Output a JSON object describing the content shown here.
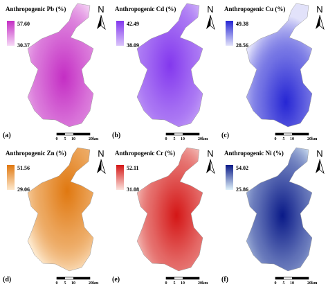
{
  "north": "N",
  "scale_bar": [
    "0",
    "5",
    "10",
    "20km"
  ],
  "panels": [
    {
      "label": "(a)",
      "title": "Anthropogenic Pb (%)",
      "legend_max": "57.60",
      "legend_min": "30.37",
      "color_max": "#c42ec4",
      "color_min": "#f6d8f6"
    },
    {
      "label": "(b)",
      "title": "Anthropogenic Cd (%)",
      "legend_max": "42.49",
      "legend_min": "38.09",
      "color_max": "#8338ee",
      "color_min": "#dac4fa"
    },
    {
      "label": "(c)",
      "title": "Anthropogenic Cu (%)",
      "legend_max": "49.38",
      "legend_min": "28.56",
      "color_max": "#2626d4",
      "color_min": "#e2e2fa"
    },
    {
      "label": "(d)",
      "title": "Anthropogenic Zn (%)",
      "legend_max": "51.56",
      "legend_min": "29.06",
      "color_max": "#e07810",
      "color_min": "#fde8cc"
    },
    {
      "label": "(e)",
      "title": "Anthropogenic Cr (%)",
      "legend_max": "52.11",
      "legend_min": "31.08",
      "color_max": "#d41616",
      "color_min": "#fbe2dc"
    },
    {
      "label": "(f)",
      "title": "Anthropogenic Ni (%)",
      "legend_max": "54.02",
      "legend_min": "25.86",
      "color_max": "#0a1a88",
      "color_min": "#e0f2fb"
    }
  ]
}
